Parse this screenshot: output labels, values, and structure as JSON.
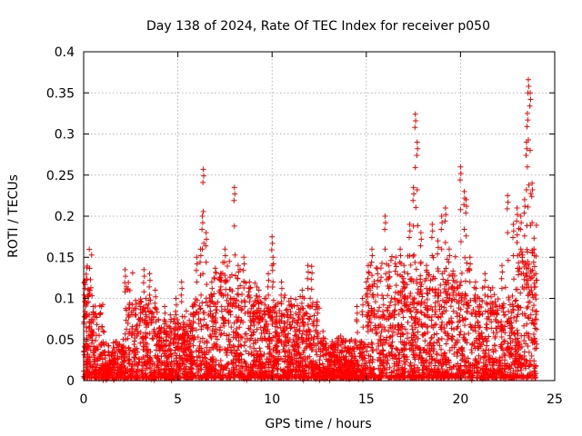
{
  "chart_data": {
    "type": "scatter",
    "title": "Day 138 of 2024, Rate Of TEC Index for receiver p050",
    "xlabel": "GPS time / hours",
    "ylabel": "ROTI / TECUs",
    "xlim": [
      0,
      25
    ],
    "ylim": [
      0,
      0.4
    ],
    "xticks": [
      0,
      5,
      10,
      15,
      20,
      25
    ],
    "xtick_labels": [
      "0",
      "5",
      "10",
      "15",
      "20",
      "25"
    ],
    "yticks": [
      0,
      0.05,
      0.1,
      0.15,
      0.2,
      0.25,
      0.3,
      0.35,
      0.4
    ],
    "ytick_labels": [
      "0",
      "0.05",
      "0.1",
      "0.15",
      "0.2",
      "0.25",
      "0.3",
      "0.35",
      "0.4"
    ],
    "grid": true,
    "marker": "+",
    "series": [
      {
        "name": "ROTI",
        "color": "#ff0000",
        "x": [
          0.05,
          0.1,
          0.15,
          0.2,
          0.3,
          0.4,
          0.5,
          0.6,
          0.8,
          1.0,
          1.2,
          1.5,
          1.8,
          2.1,
          2.2,
          2.4,
          2.7,
          3.0,
          3.2,
          3.3,
          3.5,
          3.8,
          4.0,
          4.3,
          4.6,
          4.9,
          5.0,
          5.2,
          5.5,
          5.8,
          6.0,
          6.2,
          6.3,
          6.35,
          6.5,
          6.8,
          7.0,
          7.3,
          7.5,
          7.8,
          8.0,
          8.2,
          8.5,
          8.8,
          9.0,
          9.3,
          9.6,
          9.8,
          10.0,
          10.05,
          10.2,
          10.5,
          10.8,
          11.0,
          11.3,
          11.6,
          11.9,
          12.1,
          12.4,
          12.7,
          13.0,
          13.3,
          13.6,
          13.9,
          14.2,
          14.5,
          14.8,
          15.0,
          15.1,
          15.3,
          15.6,
          15.9,
          16.0,
          16.2,
          16.5,
          16.8,
          17.0,
          17.3,
          17.5,
          17.6,
          17.7,
          17.9,
          18.2,
          18.5,
          18.8,
          19.0,
          19.2,
          19.4,
          19.6,
          19.8,
          20.0,
          20.2,
          20.3,
          20.5,
          20.8,
          21.0,
          21.3,
          21.6,
          21.9,
          22.2,
          22.5,
          22.8,
          23.0,
          23.2,
          23.4,
          23.5,
          23.55,
          23.6,
          23.7,
          23.8,
          23.9,
          24.0
        ],
        "y": [
          0.12,
          0.1,
          0.06,
          0.04,
          0.08,
          0.07,
          0.09,
          0.02,
          0.01,
          0.02,
          0.01,
          0.03,
          0.02,
          0.05,
          0.135,
          0.04,
          0.06,
          0.09,
          0.135,
          0.1,
          0.13,
          0.11,
          0.06,
          0.09,
          0.08,
          0.1,
          0.07,
          0.12,
          0.06,
          0.08,
          0.15,
          0.16,
          0.2,
          0.257,
          0.18,
          0.12,
          0.09,
          0.13,
          0.16,
          0.1,
          0.235,
          0.14,
          0.15,
          0.12,
          0.09,
          0.11,
          0.1,
          0.13,
          0.175,
          0.15,
          0.09,
          0.12,
          0.08,
          0.1,
          0.07,
          0.11,
          0.14,
          0.139,
          0.09,
          0.06,
          0.04,
          0.03,
          0.02,
          0.025,
          0.03,
          0.09,
          0.1,
          0.12,
          0.14,
          0.16,
          0.13,
          0.1,
          0.2,
          0.14,
          0.1,
          0.16,
          0.14,
          0.19,
          0.235,
          0.324,
          0.29,
          0.18,
          0.14,
          0.19,
          0.17,
          0.2,
          0.21,
          0.16,
          0.13,
          0.12,
          0.26,
          0.23,
          0.22,
          0.15,
          0.12,
          0.1,
          0.13,
          0.11,
          0.09,
          0.14,
          0.225,
          0.19,
          0.21,
          0.2,
          0.22,
          0.29,
          0.325,
          0.366,
          0.35,
          0.24,
          0.16,
          0.13
        ],
        "baseline_density": "dense cloud of points between 0 and about 0.1 TECUs across 0 to 24 hours"
      }
    ]
  }
}
